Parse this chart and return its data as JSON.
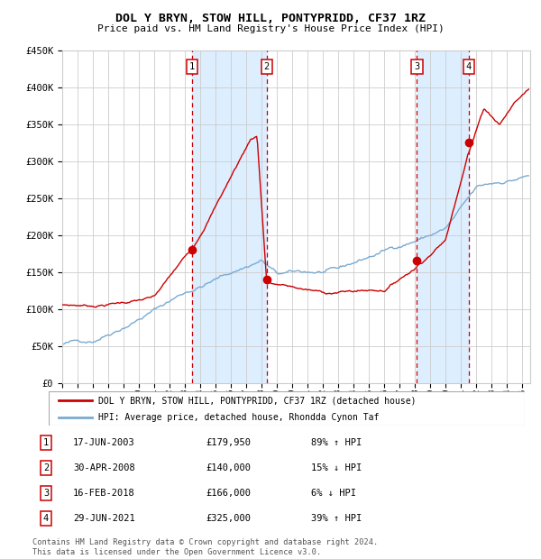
{
  "title": "DOL Y BRYN, STOW HILL, PONTYPRIDD, CF37 1RZ",
  "subtitle": "Price paid vs. HM Land Registry's House Price Index (HPI)",
  "ylim": [
    0,
    450000
  ],
  "yticks": [
    0,
    50000,
    100000,
    150000,
    200000,
    250000,
    300000,
    350000,
    400000,
    450000
  ],
  "ytick_labels": [
    "£0",
    "£50K",
    "£100K",
    "£150K",
    "£200K",
    "£250K",
    "£300K",
    "£350K",
    "£400K",
    "£450K"
  ],
  "xlim_start": 1995.0,
  "xlim_end": 2025.5,
  "sale_dates": [
    2003.46,
    2008.33,
    2018.12,
    2021.49
  ],
  "sale_prices": [
    179950,
    140000,
    166000,
    325000
  ],
  "sale_labels": [
    "1",
    "2",
    "3",
    "4"
  ],
  "legend_line1": "DOL Y BRYN, STOW HILL, PONTYPRIDD, CF37 1RZ (detached house)",
  "legend_line2": "HPI: Average price, detached house, Rhondda Cynon Taf",
  "table_entries": [
    {
      "num": "1",
      "date": "17-JUN-2003",
      "price": "£179,950",
      "pct": "89% ↑ HPI"
    },
    {
      "num": "2",
      "date": "30-APR-2008",
      "price": "£140,000",
      "pct": "15% ↓ HPI"
    },
    {
      "num": "3",
      "date": "16-FEB-2018",
      "price": "£166,000",
      "pct": "6% ↓ HPI"
    },
    {
      "num": "4",
      "date": "29-JUN-2021",
      "price": "£325,000",
      "pct": "39% ↑ HPI"
    }
  ],
  "footer": "Contains HM Land Registry data © Crown copyright and database right 2024.\nThis data is licensed under the Open Government Licence v3.0.",
  "hpi_color": "#7aaad0",
  "price_color": "#cc0000",
  "sale_dot_color": "#cc0000",
  "shade_color": "#ddeeff",
  "grid_color": "#cccccc",
  "bg_color": "#ffffff",
  "number_box_color": "#cc0000"
}
